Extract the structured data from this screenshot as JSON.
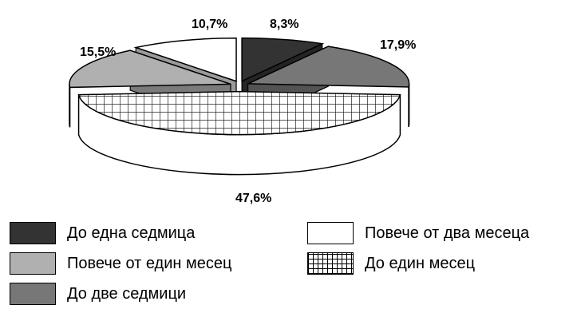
{
  "chart_data": {
    "type": "pie",
    "style": "3d-exploded",
    "slices": [
      {
        "label": "До една седмица",
        "value": 8.3,
        "value_label": "8,3%",
        "color": "#333333",
        "pattern": "solid"
      },
      {
        "label": "До две седмици",
        "value": 17.9,
        "value_label": "17,9%",
        "color": "#777777",
        "pattern": "solid"
      },
      {
        "label": "До един месец",
        "value": 47.6,
        "value_label": "47,6%",
        "color": "#ffffff",
        "pattern": "grid"
      },
      {
        "label": "Повече от един месец",
        "value": 15.5,
        "value_label": "15,5%",
        "color": "#b0b0b0",
        "pattern": "solid"
      },
      {
        "label": "Повече от два месеца",
        "value": 10.7,
        "value_label": "10,7%",
        "color": "#ffffff",
        "pattern": "solid"
      }
    ],
    "legend": {
      "placement": "bottom",
      "items": [
        {
          "label": "До една седмица",
          "color": "#333333",
          "pattern": "solid"
        },
        {
          "label": "Повече от два месеца",
          "color": "#ffffff",
          "pattern": "solid"
        },
        {
          "label": "Повече от един месец",
          "color": "#b0b0b0",
          "pattern": "solid"
        },
        {
          "label": "До един месец",
          "color": "#ffffff",
          "pattern": "grid"
        },
        {
          "label": "До две седмици",
          "color": "#777777",
          "pattern": "solid"
        }
      ]
    }
  }
}
